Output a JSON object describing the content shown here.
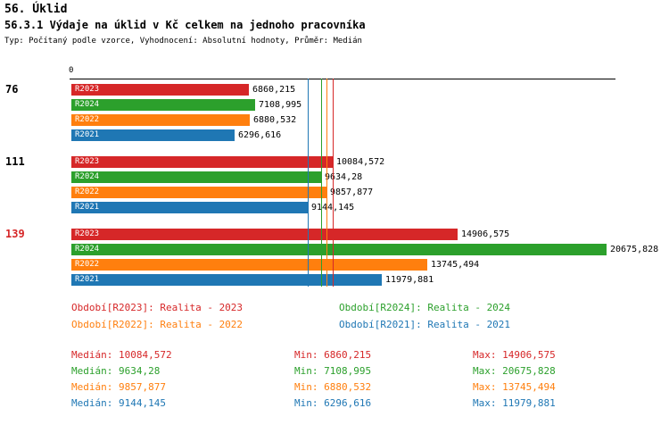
{
  "header": {
    "title": "56. Úklid",
    "subtitle": "56.3.1 Výdaje na úklid v Kč celkem na jednoho pracovníka",
    "meta": "Typ: Počítaný podle vzorce, Vyhodnocení: Absolutní hodnoty, Průměr: Medián"
  },
  "colors": {
    "R2023": "#d62728",
    "R2024": "#2ca02c",
    "R2022": "#ff7f0e",
    "R2021": "#1f77b4",
    "axis": "#000000",
    "highlight_group": "#d62728"
  },
  "chart_data": {
    "type": "bar",
    "orientation": "horizontal",
    "x_origin_label": "0",
    "x_max": 20675.828,
    "grid": false,
    "series_order": [
      "R2023",
      "R2024",
      "R2022",
      "R2021"
    ],
    "groups": [
      {
        "label": "76",
        "highlight": false,
        "bars": [
          {
            "series": "R2023",
            "value": 6860.215,
            "label": "6860,215"
          },
          {
            "series": "R2024",
            "value": 7108.995,
            "label": "7108,995"
          },
          {
            "series": "R2022",
            "value": 6880.532,
            "label": "6880,532"
          },
          {
            "series": "R2021",
            "value": 6296.616,
            "label": "6296,616"
          }
        ]
      },
      {
        "label": "111",
        "highlight": false,
        "bars": [
          {
            "series": "R2023",
            "value": 10084.572,
            "label": "10084,572"
          },
          {
            "series": "R2024",
            "value": 9634.28,
            "label": "9634,28"
          },
          {
            "series": "R2022",
            "value": 9857.877,
            "label": "9857,877"
          },
          {
            "series": "R2021",
            "value": 9144.145,
            "label": "9144,145"
          }
        ]
      },
      {
        "label": "139",
        "highlight": true,
        "bars": [
          {
            "series": "R2023",
            "value": 14906.575,
            "label": "14906,575"
          },
          {
            "series": "R2024",
            "value": 20675.828,
            "label": "20675,828"
          },
          {
            "series": "R2022",
            "value": 13745.494,
            "label": "13745,494"
          },
          {
            "series": "R2021",
            "value": 11979.881,
            "label": "11979,881"
          }
        ]
      }
    ],
    "median_lines": [
      {
        "series": "R2021",
        "value": 9144.145
      },
      {
        "series": "R2024",
        "value": 9634.28
      },
      {
        "series": "R2022",
        "value": 9857.877
      },
      {
        "series": "R2023",
        "value": 10084.572
      }
    ]
  },
  "legend": [
    {
      "series": "R2023",
      "text": "Období[R2023]: Realita - 2023"
    },
    {
      "series": "R2024",
      "text": "Období[R2024]: Realita - 2024"
    },
    {
      "series": "R2022",
      "text": "Období[R2022]: Realita - 2022"
    },
    {
      "series": "R2021",
      "text": "Období[R2021]: Realita - 2021"
    }
  ],
  "stats": [
    {
      "series": "R2023",
      "median": "Medián: 10084,572",
      "min": "Min: 6860,215",
      "max": "Max: 14906,575"
    },
    {
      "series": "R2024",
      "median": "Medián: 9634,28",
      "min": "Min: 7108,995",
      "max": "Max: 20675,828"
    },
    {
      "series": "R2022",
      "median": "Medián: 9857,877",
      "min": "Min: 6880,532",
      "max": "Max: 13745,494"
    },
    {
      "series": "R2021",
      "median": "Medián: 9144,145",
      "min": "Min: 6296,616",
      "max": "Max: 11979,881"
    }
  ]
}
